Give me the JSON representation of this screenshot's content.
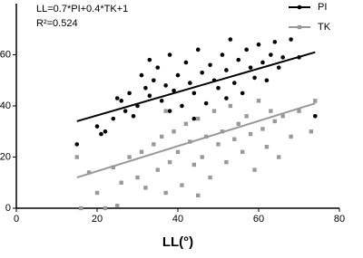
{
  "chart_data": {
    "type": "scatter",
    "annotations": [
      "LL=0.7*PI+0.4*TK+1",
      "R²=0.524"
    ],
    "x_label": "LL(°)",
    "xlim": [
      0,
      80
    ],
    "xticks": [
      0,
      20,
      40,
      60,
      80
    ],
    "ylim": [
      0,
      80
    ],
    "yticks": [
      0,
      20,
      40,
      60
    ],
    "legend": "top-right",
    "series": [
      {
        "name": "PI",
        "color": "#000000",
        "marker": "circle",
        "x": [
          15,
          20,
          21,
          22,
          24,
          25,
          26,
          27,
          28,
          29,
          30,
          31,
          32,
          33,
          34,
          35,
          36,
          37,
          38,
          39,
          40,
          41,
          42,
          43,
          44,
          45,
          46,
          47,
          48,
          49,
          50,
          51,
          52,
          53,
          54,
          55,
          56,
          57,
          58,
          59,
          60,
          61,
          62,
          63,
          64,
          65,
          66,
          68,
          70,
          74,
          33,
          44,
          52,
          38
        ],
        "values": [
          25,
          32,
          29,
          30,
          35,
          43,
          42,
          38,
          45,
          36,
          40,
          52,
          47,
          44,
          50,
          55,
          42,
          48,
          60,
          46,
          52,
          40,
          57,
          49,
          45,
          62,
          53,
          41,
          56,
          50,
          47,
          60,
          54,
          66,
          49,
          58,
          45,
          62,
          55,
          51,
          64,
          57,
          50,
          60,
          65,
          55,
          59,
          66,
          59,
          36,
          58,
          35,
          43,
          38
        ],
        "trend": {
          "x": [
            15,
            74
          ],
          "y": [
            34,
            61
          ]
        }
      },
      {
        "name": "TK",
        "color": "#999999",
        "marker": "square",
        "x": [
          15,
          16,
          20,
          22,
          25,
          18,
          24,
          26,
          28,
          30,
          31,
          32,
          34,
          35,
          36,
          37,
          38,
          39,
          40,
          41,
          42,
          43,
          44,
          45,
          46,
          47,
          48,
          49,
          50,
          51,
          52,
          53,
          54,
          55,
          56,
          57,
          58,
          59,
          60,
          61,
          62,
          63,
          64,
          65,
          66,
          68,
          70,
          73,
          74,
          37,
          45
        ],
        "values": [
          20,
          0,
          6,
          0,
          1,
          14,
          16,
          10,
          20,
          12,
          22,
          8,
          25,
          15,
          28,
          6,
          18,
          30,
          22,
          9,
          33,
          26,
          17,
          35,
          20,
          28,
          12,
          38,
          25,
          30,
          18,
          40,
          27,
          33,
          22,
          36,
          29,
          15,
          42,
          31,
          24,
          38,
          34,
          20,
          36,
          28,
          38,
          30,
          42,
          38,
          5
        ],
        "trend": {
          "x": [
            15,
            74
          ],
          "y": [
            12,
            41
          ]
        }
      }
    ]
  }
}
